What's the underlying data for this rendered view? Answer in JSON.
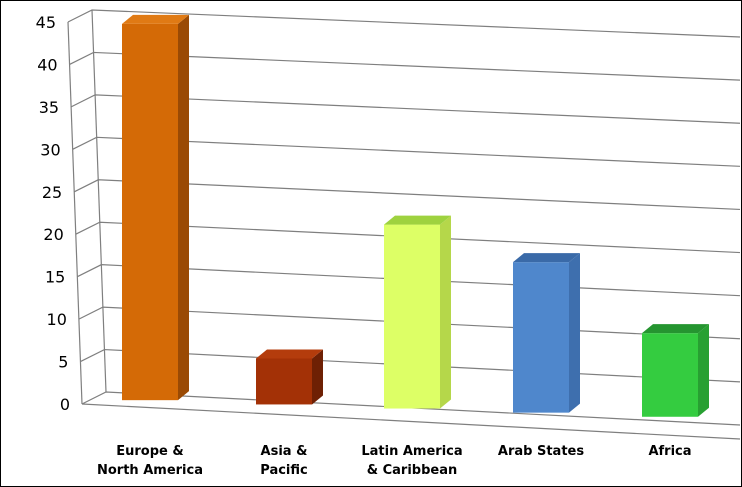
{
  "chart_data": {
    "type": "bar",
    "title": "",
    "xlabel": "",
    "ylabel": "",
    "ylim": [
      0,
      45
    ],
    "yticks": [
      0,
      5,
      10,
      15,
      20,
      25,
      30,
      35,
      40,
      45
    ],
    "grid": true,
    "legend": "none",
    "categories": [
      [
        "Europe &",
        "North America"
      ],
      [
        "Asia &",
        "Pacific"
      ],
      [
        "Latin America",
        "& Caribbean"
      ],
      [
        "Arab States"
      ],
      [
        "Africa"
      ]
    ],
    "values": [
      45,
      5.5,
      22,
      18,
      10
    ],
    "colors": [
      {
        "front": "#d46a06",
        "top": "#e07a14",
        "side": "#9a4a04"
      },
      {
        "front": "#a33106",
        "top": "#b43c0c",
        "side": "#6e2004"
      },
      {
        "front": "#ddff66",
        "top": "#9ed23f",
        "side": "#b5d74a"
      },
      {
        "front": "#4f87cc",
        "top": "#3a6aa8",
        "side": "#3e6fae"
      },
      {
        "front": "#34cc40",
        "top": "#259530",
        "side": "#28a032"
      }
    ]
  }
}
